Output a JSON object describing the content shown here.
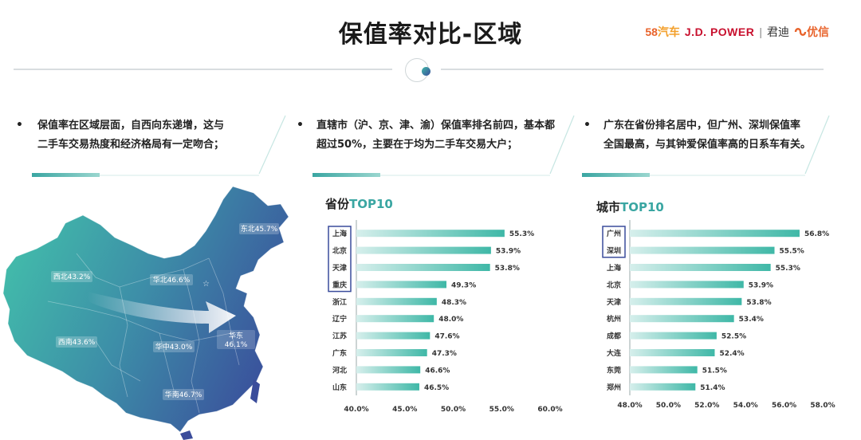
{
  "page": {
    "title": "保值率对比-区域",
    "logos": {
      "logo58_num": "58",
      "logo58_text": "汽车",
      "jdpower": "J.D. POWER",
      "sep": "|",
      "jdpower_cn": "君迪",
      "youxin": "优信"
    }
  },
  "bullets": [
    {
      "mark": "•",
      "text_l1": "保值率在区域层面，自西向东递增，这与",
      "text_l2": "二手车交易热度和经济格局有一定吻合；"
    },
    {
      "mark": "•",
      "text_l1": "直辖市（沪、京、津、渝）保值率排名前四，基本都",
      "text_l2": "超过50%，主要在于均为二手车交易大户；"
    },
    {
      "mark": "•",
      "text_l1": "广东在省份排名居中，但广州、深圳保值率",
      "text_l2": "全国最高，与其钟爱保值率高的日系车有关。"
    }
  ],
  "map": {
    "regions": [
      {
        "label": "东北45.7%",
        "name": "东北",
        "value": 45.7
      },
      {
        "label": "西北43.2%",
        "name": "西北",
        "value": 43.2
      },
      {
        "label": "华北46.6%",
        "name": "华北",
        "value": 46.6
      },
      {
        "label": "华东",
        "label2": "46.1%",
        "name": "华东",
        "value": 46.1
      },
      {
        "label": "西南43.6%",
        "name": "西南",
        "value": 43.6
      },
      {
        "label": "华中43.0%",
        "name": "华中",
        "value": 43.0
      },
      {
        "label": "华南46.7%",
        "name": "华南",
        "value": 46.7
      }
    ],
    "colors": {
      "west": "#3fb8a7",
      "east": "#3a4c9b"
    }
  },
  "chart_data": [
    {
      "type": "bar",
      "orientation": "horizontal",
      "title_a": "省份",
      "title_b": "TOP10",
      "categories": [
        "上海",
        "北京",
        "天津",
        "重庆",
        "浙江",
        "辽宁",
        "江苏",
        "广东",
        "河北",
        "山东"
      ],
      "values": [
        55.3,
        53.9,
        53.8,
        49.3,
        48.3,
        48.0,
        47.6,
        47.3,
        46.6,
        46.5
      ],
      "value_labels": [
        "55.3%",
        "53.9%",
        "53.8%",
        "49.3%",
        "48.3%",
        "48.0%",
        "47.6%",
        "47.3%",
        "46.6%",
        "46.5%"
      ],
      "xlim": [
        40.0,
        60.0
      ],
      "xticks": [
        40.0,
        45.0,
        50.0,
        55.0,
        60.0
      ],
      "xtick_labels": [
        "40.0%",
        "45.0%",
        "50.0%",
        "55.0%",
        "60.0%"
      ],
      "highlighted": [
        "上海",
        "北京",
        "天津",
        "重庆"
      ],
      "highlight_color": "#3a4c9b",
      "bar_color_start": "#3fb8a7",
      "bar_color_end": "#d6efec"
    },
    {
      "type": "bar",
      "orientation": "horizontal",
      "title_a": "城市",
      "title_b": "TOP10",
      "categories": [
        "广州",
        "深圳",
        "上海",
        "北京",
        "天津",
        "杭州",
        "成都",
        "大连",
        "东莞",
        "郑州"
      ],
      "values": [
        56.8,
        55.5,
        55.3,
        53.9,
        53.8,
        53.4,
        52.5,
        52.4,
        51.5,
        51.4
      ],
      "value_labels": [
        "56.8%",
        "55.5%",
        "55.3%",
        "53.9%",
        "53.8%",
        "53.4%",
        "52.5%",
        "52.4%",
        "51.5%",
        "51.4%"
      ],
      "xlim": [
        48.0,
        58.0
      ],
      "xticks": [
        48.0,
        50.0,
        52.0,
        54.0,
        56.0,
        58.0
      ],
      "xtick_labels": [
        "48.0%",
        "50.0%",
        "52.0%",
        "54.0%",
        "56.0%",
        "58.0%"
      ],
      "highlighted": [
        "广州",
        "深圳"
      ],
      "highlight_color": "#3a4c9b",
      "bar_color_start": "#3fb8a7",
      "bar_color_end": "#d6efec"
    }
  ]
}
